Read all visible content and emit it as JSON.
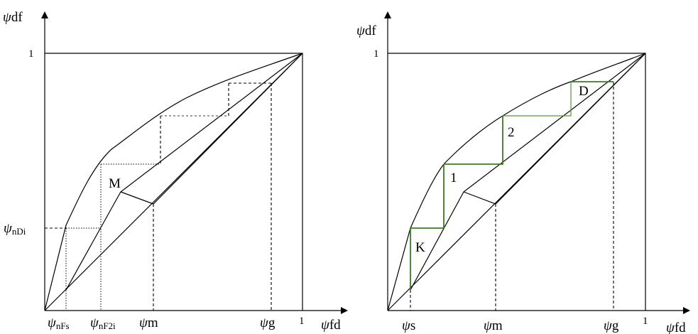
{
  "left": {
    "y_symbol": "ψ",
    "y_label": "df",
    "x_symbol": "ψ",
    "x_label": "fd",
    "one_x": "1",
    "one_y": "1",
    "point_m": "M",
    "psi_nDi_sym": "ψ",
    "psi_nDi_sub": "nDi",
    "psi_nFs_sym": "ψ",
    "psi_nFs_sub": "nFs",
    "psi_nF2i_sym": "ψ",
    "psi_nF2i_sub": "nF2i",
    "psi_m_sym": "ψ",
    "psi_m_sub": "m",
    "psi_g_sym": "ψ",
    "psi_g_sub": "g"
  },
  "right": {
    "y_symbol": "ψ",
    "y_label": "df",
    "x_symbol": "ψ",
    "x_label": "fd",
    "one_x": "1",
    "one_y": "1",
    "stage_k": "K",
    "stage_1": "1",
    "stage_2": "2",
    "stage_d": "D",
    "psi_s_sym": "ψ",
    "psi_s_sub": "s",
    "psi_m_sym": "ψ",
    "psi_m_sub": "m",
    "psi_g_sym": "ψ",
    "psi_g_sub": "g"
  },
  "colors": {
    "line": "#000000",
    "stages": "#3a7d1e"
  }
}
